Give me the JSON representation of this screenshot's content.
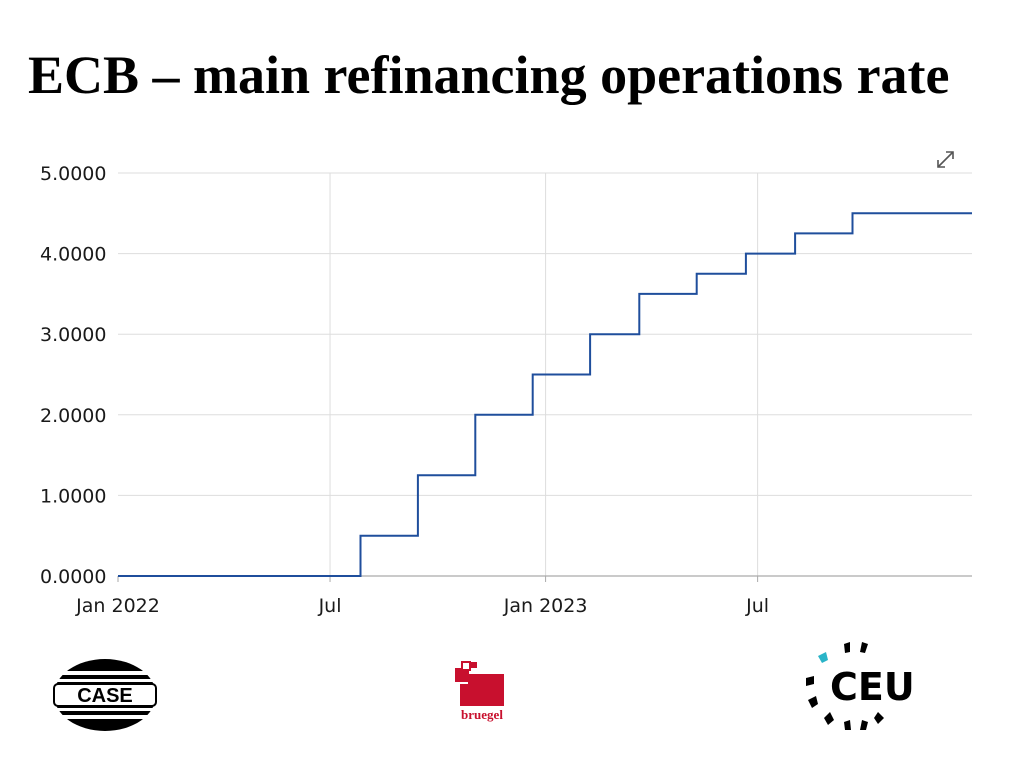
{
  "slide": {
    "title": "ECB – main refinancing operations rate"
  },
  "colors": {
    "line": "#1f4e9c",
    "grid": "#dddddd",
    "axis": "#aaaaaa",
    "ceu_accent": "#2ab4c8",
    "bruegel_red": "#c8102e"
  },
  "icons": {
    "expand": "expand-arrows-icon"
  },
  "chart_data": {
    "type": "line",
    "step": true,
    "title": "",
    "xlabel": "",
    "ylabel": "",
    "x_unit": "date",
    "xlim": [
      "2022-01-01",
      "2023-12-31"
    ],
    "ylim": [
      0,
      5
    ],
    "y_ticks": [
      {
        "value": 0,
        "label": "0.0000"
      },
      {
        "value": 1,
        "label": "1.0000"
      },
      {
        "value": 2,
        "label": "2.0000"
      },
      {
        "value": 3,
        "label": "3.0000"
      },
      {
        "value": 4,
        "label": "4.0000"
      },
      {
        "value": 5,
        "label": "5.0000"
      }
    ],
    "x_ticks": [
      {
        "value": "2022-01-01",
        "label": "Jan 2022"
      },
      {
        "value": "2022-07-01",
        "label": "Jul"
      },
      {
        "value": "2023-01-01",
        "label": "Jan 2023"
      },
      {
        "value": "2023-07-01",
        "label": "Jul"
      }
    ],
    "grid": true,
    "series": [
      {
        "name": "Main refinancing operations rate",
        "points": [
          {
            "date": "2022-01-01",
            "value": 0.0
          },
          {
            "date": "2022-07-27",
            "value": 0.5
          },
          {
            "date": "2022-09-14",
            "value": 1.25
          },
          {
            "date": "2022-11-02",
            "value": 2.0
          },
          {
            "date": "2022-12-21",
            "value": 2.5
          },
          {
            "date": "2023-02-08",
            "value": 3.0
          },
          {
            "date": "2023-03-22",
            "value": 3.5
          },
          {
            "date": "2023-05-10",
            "value": 3.75
          },
          {
            "date": "2023-06-21",
            "value": 4.0
          },
          {
            "date": "2023-08-02",
            "value": 4.25
          },
          {
            "date": "2023-09-20",
            "value": 4.5
          },
          {
            "date": "2023-12-31",
            "value": 4.5
          }
        ]
      }
    ]
  },
  "logos": {
    "case": {
      "text": "CASE"
    },
    "bruegel": {
      "text": "bruegel"
    },
    "ceu": {
      "text": "CEU"
    }
  }
}
